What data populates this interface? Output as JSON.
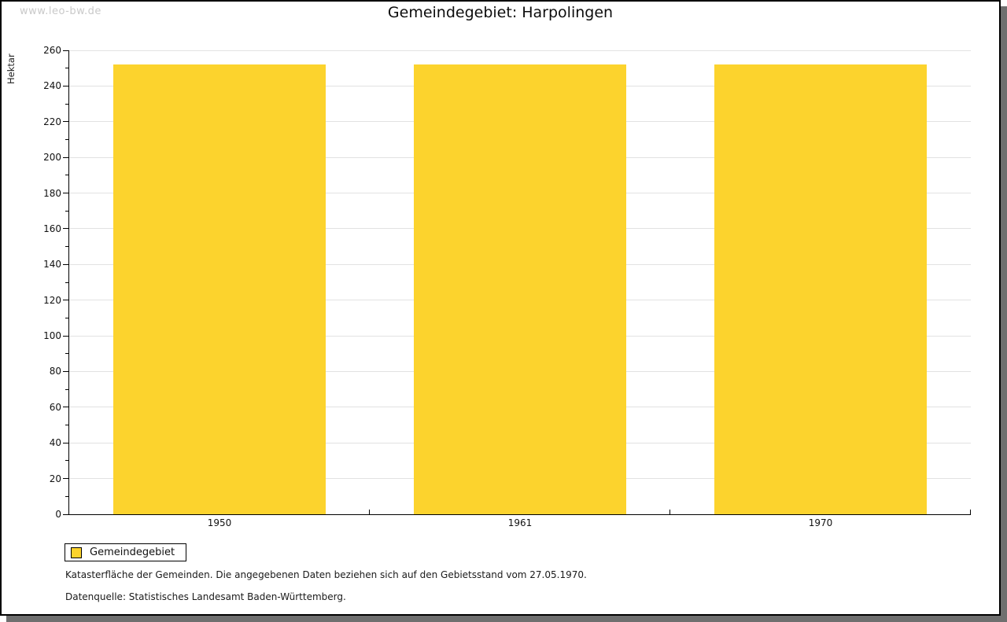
{
  "watermark": "www.leo-bw.de",
  "header": {
    "title": "Gemeindegebiet: Harpolingen"
  },
  "chart_data": {
    "type": "bar",
    "title": "Gemeindegebiet: Harpolingen",
    "categories": [
      "1950",
      "1961",
      "1970"
    ],
    "values": [
      252,
      252,
      252
    ],
    "xlabel": "",
    "ylabel": "Hektar",
    "ylim": [
      0,
      260
    ],
    "y_major_step": 20,
    "y_minor_step": 10,
    "grid": "horizontal-major-lines",
    "legend_position": "bottom-left",
    "bar_color": "#fcd32d"
  },
  "legend": {
    "items": [
      {
        "label": "Gemeindegebiet",
        "color": "#fcd32d"
      }
    ]
  },
  "footnotes": [
    "Katasterfläche der Gemeinden. Die angegebenen Daten beziehen sich auf den Gebietsstand vom 27.05.1970.",
    "Datenquelle: Statistisches Landesamt Baden-Württemberg."
  ],
  "colors": {
    "bar": "#fcd32d",
    "gridline": "#e2e2e2",
    "axis": "#000000",
    "panel_shadow": "#6f6f6f",
    "watermark_text": "#c9c9c9"
  }
}
